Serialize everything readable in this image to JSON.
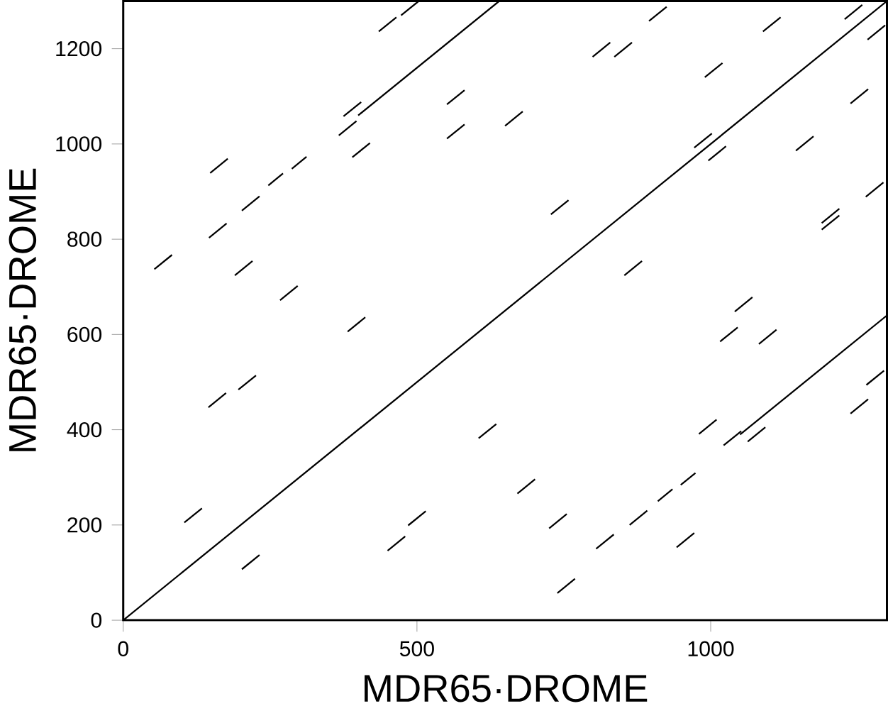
{
  "chart_data": {
    "type": "line",
    "xlabel": "MDR65·DROME",
    "ylabel": "MDR65·DROME",
    "xlim": [
      0,
      1300
    ],
    "ylim": [
      0,
      1300
    ],
    "xticks": [
      0,
      500,
      1000
    ],
    "yticks": [
      0,
      200,
      400,
      600,
      800,
      1000,
      1200
    ],
    "series": [
      {
        "color": "#000000",
        "x": [
          0,
          1300
        ],
        "values": [
          0,
          1300
        ]
      },
      {
        "color": "#000000",
        "x": [
          400,
          640
        ],
        "values": [
          1060,
          1300
        ]
      },
      {
        "color": "#000000",
        "x": [
          1050,
          1300
        ],
        "values": [
          390,
          640
        ]
      },
      {
        "color": "#000000",
        "x": [
          473,
          503
        ],
        "values": [
          1270,
          1300
        ]
      },
      {
        "color": "#000000",
        "x": [
          435,
          465
        ],
        "values": [
          1236,
          1266
        ]
      },
      {
        "color": "#000000",
        "x": [
          375,
          405
        ],
        "values": [
          1058,
          1088
        ]
      },
      {
        "color": "#000000",
        "x": [
          367,
          397
        ],
        "values": [
          1018,
          1048
        ]
      },
      {
        "color": "#000000",
        "x": [
          390,
          420
        ],
        "values": [
          972,
          1002
        ]
      },
      {
        "color": "#000000",
        "x": [
          148,
          178
        ],
        "values": [
          939,
          969
        ]
      },
      {
        "color": "#000000",
        "x": [
          247,
          272
        ],
        "values": [
          913,
          938
        ]
      },
      {
        "color": "#000000",
        "x": [
          287,
          312
        ],
        "values": [
          948,
          973
        ]
      },
      {
        "color": "#000000",
        "x": [
          202,
          232
        ],
        "values": [
          860,
          890
        ]
      },
      {
        "color": "#000000",
        "x": [
          146,
          176
        ],
        "values": [
          803,
          833
        ]
      },
      {
        "color": "#000000",
        "x": [
          190,
          220
        ],
        "values": [
          724,
          754
        ]
      },
      {
        "color": "#000000",
        "x": [
          53,
          83
        ],
        "values": [
          737,
          767
        ]
      },
      {
        "color": "#000000",
        "x": [
          267,
          297
        ],
        "values": [
          672,
          702
        ]
      },
      {
        "color": "#000000",
        "x": [
          382,
          412
        ],
        "values": [
          606,
          636
        ]
      },
      {
        "color": "#000000",
        "x": [
          145,
          175
        ],
        "values": [
          447,
          477
        ]
      },
      {
        "color": "#000000",
        "x": [
          196,
          226
        ],
        "values": [
          484,
          514
        ]
      },
      {
        "color": "#000000",
        "x": [
          104,
          134
        ],
        "values": [
          205,
          235
        ]
      },
      {
        "color": "#000000",
        "x": [
          202,
          232
        ],
        "values": [
          107,
          137
        ]
      },
      {
        "color": "#000000",
        "x": [
          450,
          480
        ],
        "values": [
          146,
          176
        ]
      },
      {
        "color": "#000000",
        "x": [
          485,
          515
        ],
        "values": [
          199,
          229
        ]
      },
      {
        "color": "#000000",
        "x": [
          605,
          635
        ],
        "values": [
          382,
          412
        ]
      },
      {
        "color": "#000000",
        "x": [
          671,
          701
        ],
        "values": [
          266,
          296
        ]
      },
      {
        "color": "#000000",
        "x": [
          725,
          755
        ],
        "values": [
          193,
          223
        ]
      },
      {
        "color": "#000000",
        "x": [
          739,
          769
        ],
        "values": [
          57,
          87
        ]
      },
      {
        "color": "#000000",
        "x": [
          551,
          581
        ],
        "values": [
          1083,
          1113
        ]
      },
      {
        "color": "#000000",
        "x": [
          551,
          581
        ],
        "values": [
          1011,
          1041
        ]
      },
      {
        "color": "#000000",
        "x": [
          650,
          680
        ],
        "values": [
          1038,
          1068
        ]
      },
      {
        "color": "#000000",
        "x": [
          728,
          758
        ],
        "values": [
          852,
          882
        ]
      },
      {
        "color": "#000000",
        "x": [
          799,
          829
        ],
        "values": [
          1183,
          1213
        ]
      },
      {
        "color": "#000000",
        "x": [
          836,
          866
        ],
        "values": [
          1183,
          1213
        ]
      },
      {
        "color": "#000000",
        "x": [
          895,
          925
        ],
        "values": [
          1258,
          1288
        ]
      },
      {
        "color": "#000000",
        "x": [
          990,
          1020
        ],
        "values": [
          1140,
          1170
        ]
      },
      {
        "color": "#000000",
        "x": [
          972,
          1002
        ],
        "values": [
          992,
          1022
        ]
      },
      {
        "color": "#000000",
        "x": [
          996,
          1026
        ],
        "values": [
          965,
          995
        ]
      },
      {
        "color": "#000000",
        "x": [
          853,
          883
        ],
        "values": [
          724,
          754
        ]
      },
      {
        "color": "#000000",
        "x": [
          1089,
          1119
        ],
        "values": [
          1236,
          1266
        ]
      },
      {
        "color": "#000000",
        "x": [
          1228,
          1258
        ],
        "values": [
          1262,
          1292
        ]
      },
      {
        "color": "#000000",
        "x": [
          1267,
          1297
        ],
        "values": [
          1219,
          1249
        ]
      },
      {
        "color": "#000000",
        "x": [
          1238,
          1268
        ],
        "values": [
          1085,
          1115
        ]
      },
      {
        "color": "#000000",
        "x": [
          1145,
          1175
        ],
        "values": [
          986,
          1016
        ]
      },
      {
        "color": "#000000",
        "x": [
          1189,
          1219
        ],
        "values": [
          834,
          864
        ]
      },
      {
        "color": "#000000",
        "x": [
          1189,
          1219
        ],
        "values": [
          820,
          850
        ]
      },
      {
        "color": "#000000",
        "x": [
          1264,
          1294
        ],
        "values": [
          889,
          919
        ]
      },
      {
        "color": "#000000",
        "x": [
          1041,
          1071
        ],
        "values": [
          648,
          678
        ]
      },
      {
        "color": "#000000",
        "x": [
          1016,
          1046
        ],
        "values": [
          585,
          615
        ]
      },
      {
        "color": "#000000",
        "x": [
          1082,
          1112
        ],
        "values": [
          580,
          610
        ]
      },
      {
        "color": "#000000",
        "x": [
          980,
          1010
        ],
        "values": [
          391,
          421
        ]
      },
      {
        "color": "#000000",
        "x": [
          1022,
          1052
        ],
        "values": [
          367,
          397
        ]
      },
      {
        "color": "#000000",
        "x": [
          1063,
          1093
        ],
        "values": [
          375,
          405
        ]
      },
      {
        "color": "#000000",
        "x": [
          1238,
          1268
        ],
        "values": [
          434,
          464
        ]
      },
      {
        "color": "#000000",
        "x": [
          1265,
          1295
        ],
        "values": [
          494,
          524
        ]
      },
      {
        "color": "#000000",
        "x": [
          910,
          935
        ],
        "values": [
          250,
          275
        ]
      },
      {
        "color": "#000000",
        "x": [
          949,
          974
        ],
        "values": [
          284,
          309
        ]
      },
      {
        "color": "#000000",
        "x": [
          862,
          892
        ],
        "values": [
          200,
          230
        ]
      },
      {
        "color": "#000000",
        "x": [
          805,
          835
        ],
        "values": [
          150,
          180
        ]
      },
      {
        "color": "#000000",
        "x": [
          942,
          972
        ],
        "values": [
          153,
          183
        ]
      }
    ]
  }
}
